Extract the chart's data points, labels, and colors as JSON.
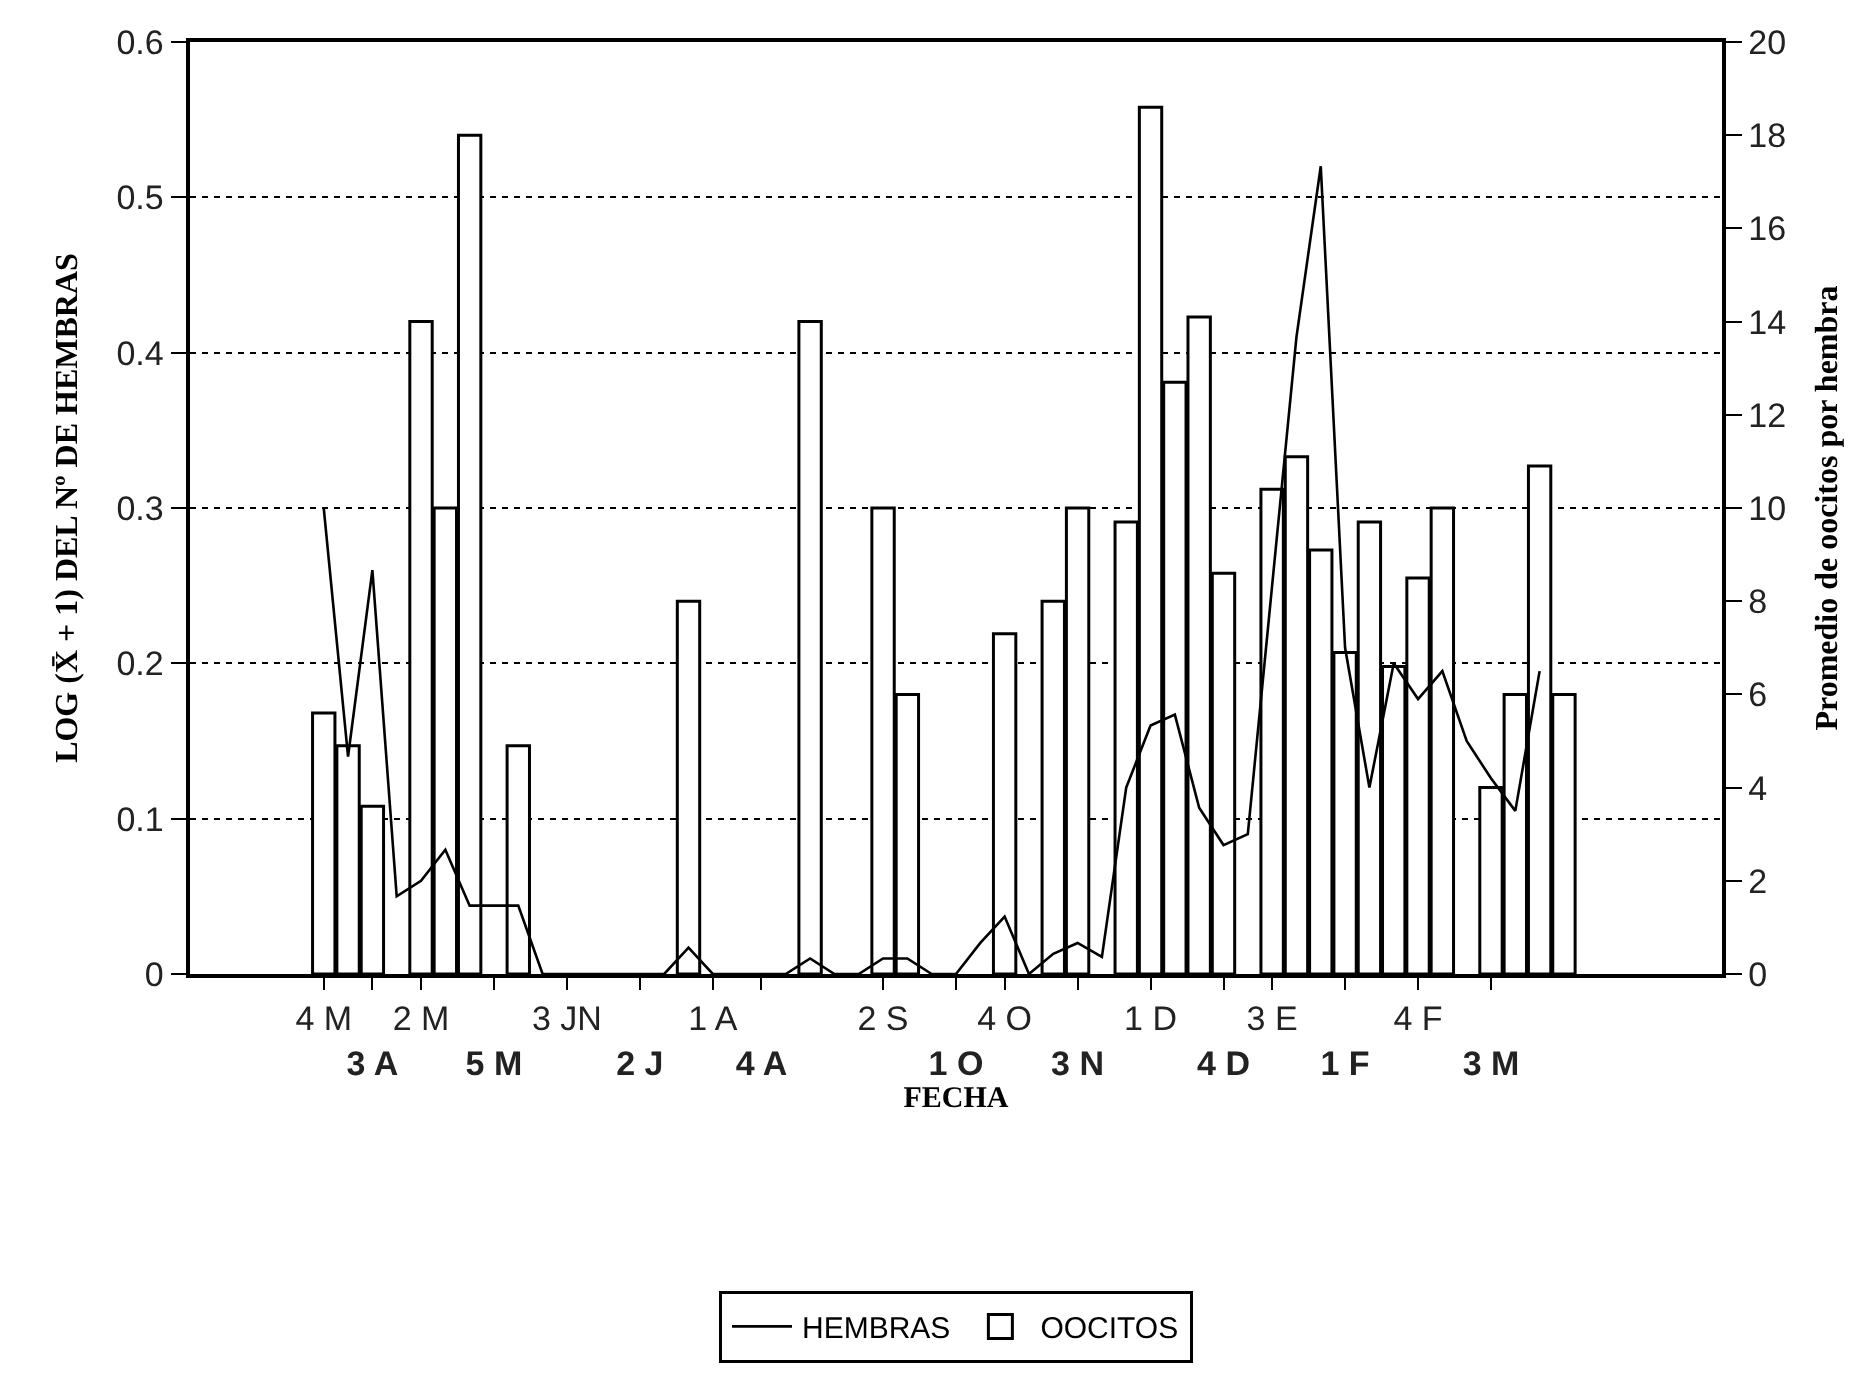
{
  "chart_data": {
    "type": "bar",
    "ylabel": "LOG (X̄ + 1) DEL Nº DE HEMBRAS",
    "y2label": "Promedio de oocitos por hembra",
    "xlabel": "FECHA",
    "categories": [
      null,
      null,
      null,
      null,
      null,
      "4 M",
      null,
      "3 A",
      null,
      "2 M",
      null,
      null,
      "5 M",
      null,
      null,
      "3 JN",
      null,
      null,
      "2 J",
      null,
      null,
      "1 A",
      null,
      "4 A",
      null,
      null,
      null,
      null,
      "2 S",
      null,
      null,
      "1 O",
      null,
      "4 O",
      null,
      null,
      "3 N",
      null,
      null,
      "1 D",
      null,
      null,
      "4 D",
      null,
      "3 E",
      null,
      null,
      "1 F",
      null,
      null,
      "4 F",
      null,
      null,
      "3 M",
      null,
      null,
      null,
      null,
      null,
      null,
      null,
      null,
      null
    ],
    "series": [
      {
        "name": "OOCITOS",
        "axis": "y2",
        "color": "#ffffff",
        "values": [
          null,
          null,
          null,
          null,
          null,
          5.6,
          4.9,
          3.6,
          null,
          14.0,
          10.0,
          18.0,
          null,
          4.9,
          null,
          null,
          null,
          null,
          null,
          null,
          8.0,
          null,
          null,
          null,
          null,
          14.0,
          null,
          null,
          10.0,
          6.0,
          null,
          null,
          null,
          7.3,
          null,
          8.0,
          10.0,
          null,
          9.7,
          18.6,
          12.7,
          14.1,
          8.6,
          null,
          10.4,
          11.1,
          9.1,
          6.9,
          9.7,
          6.6,
          8.5,
          10.0,
          null,
          4.0,
          6.0,
          10.9,
          6.0,
          null,
          null,
          null,
          null,
          null,
          null
        ]
      },
      {
        "name": "HEMBRAS",
        "type": "line",
        "color": "#000000",
        "values": [
          null,
          null,
          null,
          null,
          null,
          0.3,
          0.14,
          0.26,
          0.05,
          0.06,
          0.08,
          0.044,
          0.044,
          0.044,
          0,
          0,
          0,
          0,
          0,
          0,
          0.017,
          0,
          0,
          0,
          0,
          0.01,
          0,
          0,
          0.01,
          0.01,
          0,
          0,
          0.02,
          0.037,
          0,
          0.013,
          0.02,
          0.011,
          0.12,
          0.16,
          0.167,
          0.107,
          0.083,
          0.09,
          0.25,
          0.41,
          0.52,
          0.21,
          0.12,
          0.2,
          0.177,
          0.195,
          0.15,
          0.126,
          0.105,
          0.195,
          null,
          null,
          null,
          null,
          null,
          null,
          null
        ]
      }
    ],
    "ylim": [
      0,
      0.6
    ],
    "yticks": [
      0,
      0.1,
      0.2,
      0.3,
      0.4,
      0.5,
      0.6
    ],
    "y2lim": [
      0,
      20
    ],
    "y2ticks": [
      0,
      2,
      4,
      6,
      8,
      10,
      12,
      14,
      16,
      18,
      20
    ],
    "grid": "y",
    "legend": "bottom",
    "marker": "none",
    "line_style": "solid"
  }
}
